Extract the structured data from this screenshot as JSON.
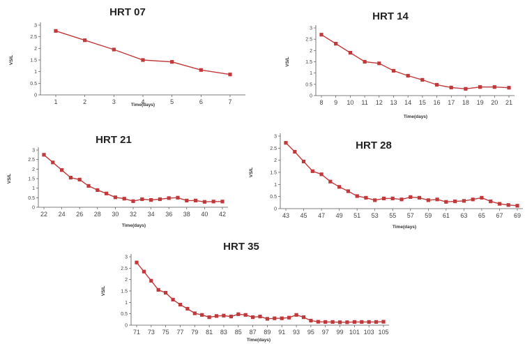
{
  "chart_data": [
    {
      "type": "line",
      "title": "HRT 07",
      "xlabel": "Time(days)",
      "ylabel": "VS/L",
      "color": "#c0393b",
      "ylim": [
        0,
        3
      ],
      "yticks": [
        "0",
        "0.5",
        "1",
        "1.5",
        "2",
        "2.5",
        "3"
      ],
      "xticks": [
        "1",
        "2",
        "3",
        "4",
        "5",
        "6",
        "7"
      ],
      "x": [
        1,
        2,
        3,
        4,
        5,
        6,
        7
      ],
      "values": [
        2.75,
        2.35,
        1.95,
        1.5,
        1.42,
        1.07,
        0.88
      ]
    },
    {
      "type": "line",
      "title": "HRT  14",
      "xlabel": "Time(days)",
      "ylabel": "VS/L",
      "color": "#c0393b",
      "ylim": [
        0,
        3
      ],
      "yticks": [
        "0",
        "0.5",
        "1",
        "1.5",
        "2",
        "2.5",
        "3"
      ],
      "xticks": [
        "8",
        "9",
        "10",
        "11",
        "12",
        "13",
        "14",
        "15",
        "16",
        "17",
        "18",
        "19",
        "20",
        "21"
      ],
      "x": [
        8,
        9,
        10,
        11,
        12,
        13,
        14,
        15,
        16,
        17,
        18,
        19,
        20,
        21
      ],
      "values": [
        2.7,
        2.3,
        1.9,
        1.5,
        1.43,
        1.1,
        0.88,
        0.7,
        0.48,
        0.36,
        0.3,
        0.38,
        0.38,
        0.35
      ]
    },
    {
      "type": "line",
      "title": "HRT 21",
      "xlabel": "Time(days)",
      "ylabel": "VS/L",
      "color": "#c0393b",
      "ylim": [
        0,
        3
      ],
      "yticks": [
        "0",
        "0.5",
        "1",
        "1.5",
        "2",
        "2.5",
        "3"
      ],
      "xticks": [
        "22",
        "24",
        "26",
        "28",
        "30",
        "32",
        "34",
        "36",
        "38",
        "40",
        "42"
      ],
      "x": [
        22,
        23,
        24,
        25,
        26,
        27,
        28,
        29,
        30,
        31,
        32,
        33,
        34,
        35,
        36,
        37,
        38,
        39,
        40,
        41,
        42
      ],
      "values": [
        2.75,
        2.35,
        1.95,
        1.55,
        1.45,
        1.12,
        0.9,
        0.72,
        0.52,
        0.45,
        0.32,
        0.42,
        0.38,
        0.42,
        0.48,
        0.5,
        0.35,
        0.35,
        0.28,
        0.3,
        0.3
      ]
    },
    {
      "type": "line",
      "title": "HRT 28",
      "xlabel": "Time(days)",
      "ylabel": "VS/L",
      "color": "#c0393b",
      "ylim": [
        0,
        3
      ],
      "yticks": [
        "0",
        "0.5",
        "1",
        "1.5",
        "2",
        "2.5",
        "3"
      ],
      "xticks": [
        "43",
        "45",
        "47",
        "49",
        "51",
        "53",
        "55",
        "57",
        "59",
        "61",
        "63",
        "65",
        "67",
        "69"
      ],
      "x": [
        43,
        44,
        45,
        46,
        47,
        48,
        49,
        50,
        51,
        52,
        53,
        54,
        55,
        56,
        57,
        58,
        59,
        60,
        61,
        62,
        63,
        64,
        65,
        66,
        67,
        68,
        69
      ],
      "values": [
        2.72,
        2.35,
        1.95,
        1.55,
        1.42,
        1.12,
        0.9,
        0.72,
        0.52,
        0.45,
        0.35,
        0.42,
        0.42,
        0.38,
        0.48,
        0.45,
        0.35,
        0.38,
        0.28,
        0.3,
        0.32,
        0.38,
        0.45,
        0.3,
        0.2,
        0.15,
        0.12
      ]
    },
    {
      "type": "line",
      "title": "HRT 35",
      "xlabel": "Time(days)",
      "ylabel": "VS/L",
      "color": "#c0393b",
      "ylim": [
        0,
        3
      ],
      "yticks": [
        "0",
        "0.5",
        "1",
        "1.5",
        "2",
        "2.5",
        "3"
      ],
      "xticks": [
        "71",
        "73",
        "75",
        "77",
        "79",
        "81",
        "83",
        "85",
        "87",
        "89",
        "91",
        "93",
        "95",
        "97",
        "99",
        "101",
        "103",
        "105"
      ],
      "x": [
        71,
        72,
        73,
        74,
        75,
        76,
        77,
        78,
        79,
        80,
        81,
        82,
        83,
        84,
        85,
        86,
        87,
        88,
        89,
        90,
        91,
        92,
        93,
        94,
        95,
        96,
        97,
        98,
        99,
        100,
        101,
        102,
        103,
        104,
        105
      ],
      "values": [
        2.75,
        2.35,
        1.95,
        1.55,
        1.42,
        1.12,
        0.9,
        0.72,
        0.52,
        0.45,
        0.35,
        0.4,
        0.42,
        0.38,
        0.48,
        0.45,
        0.35,
        0.38,
        0.28,
        0.3,
        0.3,
        0.33,
        0.45,
        0.35,
        0.2,
        0.15,
        0.14,
        0.14,
        0.13,
        0.13,
        0.14,
        0.14,
        0.14,
        0.14,
        0.15
      ]
    }
  ]
}
